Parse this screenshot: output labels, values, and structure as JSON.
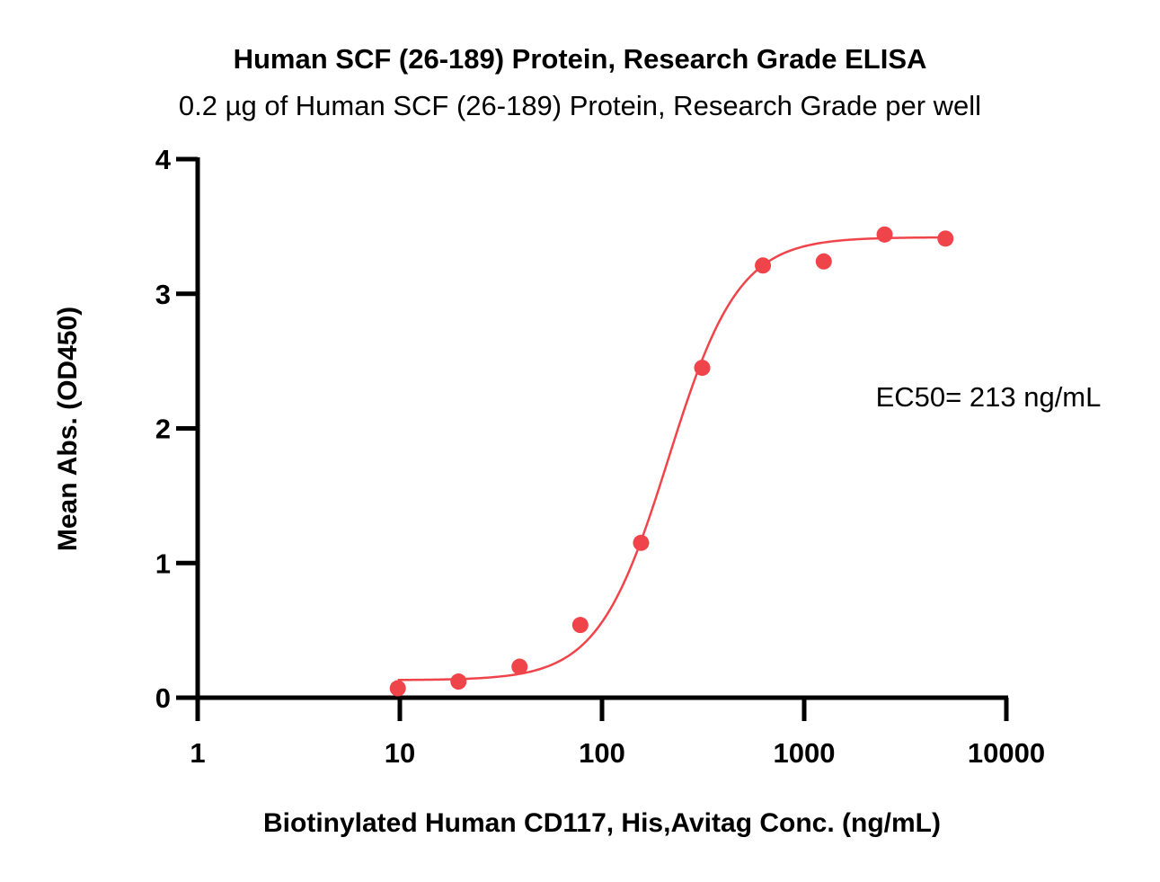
{
  "chart_data": {
    "type": "scatter",
    "title": "Human SCF (26-189) Protein, Research Grade ELISA",
    "subtitle": "0.2 µg of Human SCF (26-189) Protein, Research Grade per well",
    "xlabel": "Biotinylated Human CD117, His,Avitag Conc. (ng/mL)",
    "ylabel": "Mean Abs. (OD450)",
    "xscale": "log",
    "xlim": [
      1,
      10000
    ],
    "ylim": [
      0,
      4
    ],
    "xticks": [
      1,
      10,
      100,
      1000,
      10000
    ],
    "xtick_labels": [
      "1",
      "10",
      "100",
      "1000",
      "10000"
    ],
    "yticks": [
      0,
      1,
      2,
      3,
      4
    ],
    "ytick_labels": [
      "0",
      "1",
      "2",
      "3",
      "4"
    ],
    "series": [
      {
        "name": "Mean Abs.",
        "color": "#f0444b",
        "x": [
          9.77,
          19.5,
          39.1,
          78.1,
          156,
          313,
          625,
          1250,
          2500,
          5000
        ],
        "y": [
          0.07,
          0.12,
          0.23,
          0.54,
          1.15,
          2.45,
          3.21,
          3.24,
          3.44,
          3.41
        ]
      }
    ],
    "fit": {
      "model": "4PL",
      "bottom": 0.13,
      "top": 3.42,
      "ec50": 213,
      "hill": 2.5,
      "color": "#f0444b"
    },
    "annotations": [
      "EC50= 213 ng/mL"
    ]
  }
}
